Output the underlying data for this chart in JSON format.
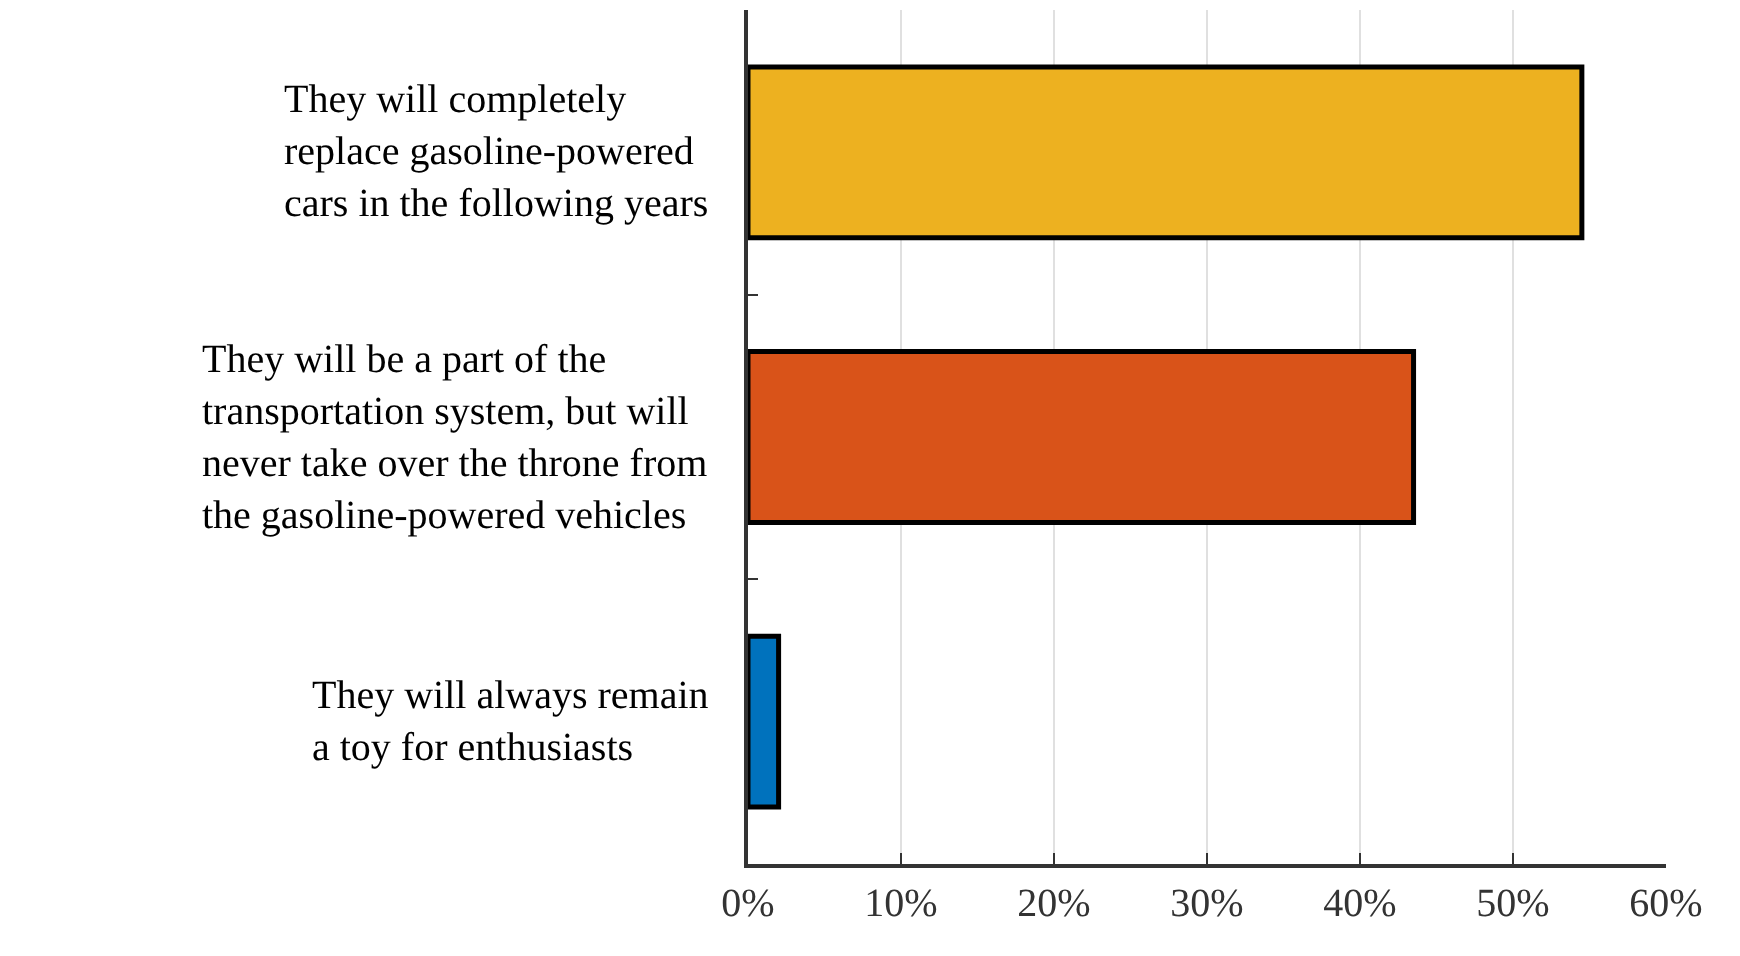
{
  "chart_data": {
    "type": "bar",
    "orientation": "horizontal",
    "categories": [
      "They will completely\nreplace gasoline-powered\ncars in the following years",
      "They will be a part of the\ntransportation system, but will\nnever take over the throne from\nthe gasoline-powered vehicles",
      "They will always remain\na toy for enthusiasts"
    ],
    "values": [
      54.5,
      43.5,
      2
    ],
    "colors": [
      "#edb120",
      "#d95319",
      "#0072bd"
    ],
    "xlim": [
      0,
      60
    ],
    "xticks": [
      {
        "value": 0,
        "label": "0%"
      },
      {
        "value": 10,
        "label": "10%"
      },
      {
        "value": 20,
        "label": "20%"
      },
      {
        "value": 30,
        "label": "30%"
      },
      {
        "value": 40,
        "label": "40%"
      },
      {
        "value": 50,
        "label": "50%"
      },
      {
        "value": 60,
        "label": "60%"
      }
    ],
    "grid": "x",
    "legend": false
  }
}
